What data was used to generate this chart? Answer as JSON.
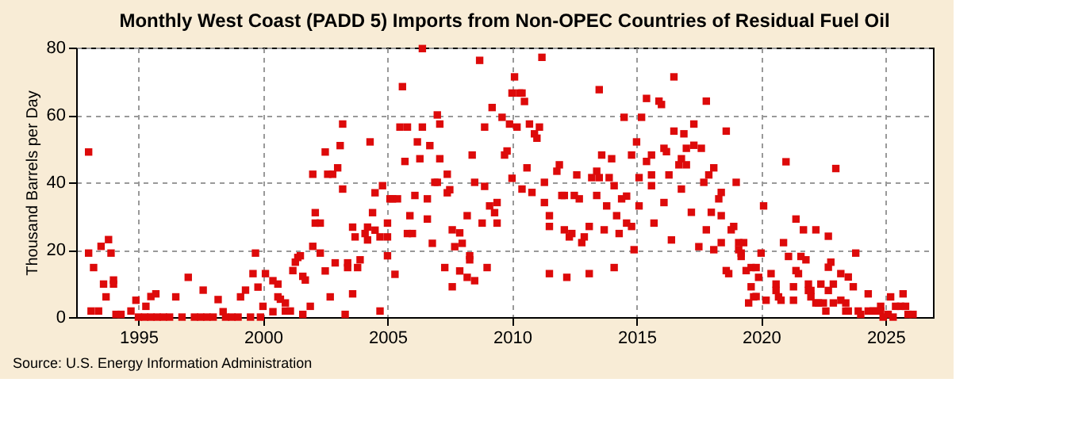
{
  "chart_data": {
    "type": "scatter",
    "title": "Monthly West Coast (PADD 5) Imports from Non-OPEC Countries of Residual Fuel Oil",
    "ylabel": "Thousand Barrels per Day",
    "annotations": [
      "Source: U.S. Energy Information Administration"
    ],
    "xlim": [
      1992.5,
      2026.9
    ],
    "xticks": [
      1995,
      2000,
      2005,
      2010,
      2015,
      2020,
      2025
    ],
    "ylim": [
      0,
      80
    ],
    "yticks": [
      0,
      20,
      40,
      60,
      80
    ],
    "grid": true,
    "marker": "square",
    "series": [
      {
        "color": "#dd0a0a",
        "x": [
          1993.0,
          1993.0,
          1993.2,
          1993.1,
          1993.4,
          1993.5,
          1993.8,
          1993.9,
          1993.6,
          1994.0,
          1994.0,
          1993.7,
          1994.1,
          1994.3,
          1994.7,
          1994.9,
          1995.3,
          1995.5,
          1995.7,
          1996.5,
          1997.0,
          1997.6,
          1998.2,
          1998.4,
          1999.1,
          1999.3,
          1999.6,
          1999.7,
          1999.8,
          2000.0,
          2000.1,
          2000.4,
          2000.4,
          2000.6,
          2000.6,
          2000.7,
          2000.9,
          2000.9,
          2001.1,
          2001.2,
          2001.3,
          2001.4,
          2001.5,
          2001.6,
          2001.7,
          2001.6,
          2001.9,
          2002.0,
          2002.0,
          2002.1,
          2002.1,
          1995.0,
          1995.25,
          1995.5,
          1995.75,
          1996.0,
          1996.25,
          1996.75,
          1997.25,
          1997.5,
          1997.75,
          1998.0,
          1998.5,
          1998.75,
          1999.0,
          1999.5,
          1999.9,
          2006.4,
          2008.7,
          2005.6,
          2010.1,
          2010.0,
          2010.3,
          2010.4,
          2010.5,
          2007.0,
          2007.1,
          2009.2,
          2009.6,
          2008.9,
          2009.9,
          2010.2,
          2005.5,
          2005.8,
          2006.4,
          2006.2,
          2006.7,
          2004.3,
          2003.2,
          2002.5,
          2003.1,
          2005.7,
          2006.3,
          2007.1,
          2008.4,
          2009.7,
          2009.8,
          2010.6,
          2003.0,
          2002.6,
          2002.8,
          2007.4,
          2006.9,
          2007.0,
          2010.0,
          2008.5,
          2008.9,
          2003.2,
          2004.8,
          2004.5,
          2005.1,
          2005.2,
          2005.4,
          2006.1,
          2006.6,
          2007.4,
          2007.5,
          2010.4,
          2010.8,
          2009.4,
          2009.1,
          2009.3,
          2004.4,
          2005.9,
          2008.2,
          2002.3,
          2006.6,
          2008.8,
          2009.4,
          2003.6,
          2004.2,
          2005.0,
          2004.5,
          2003.7,
          2004.1,
          2004.2,
          2004.7,
          2005.0,
          2005.8,
          2006.0,
          2007.6,
          2007.9,
          2006.8,
          2007.7,
          2008.0,
          2002.3,
          2005.0,
          2008.3,
          2008.3,
          2002.9,
          2003.4,
          2003.4,
          2003.8,
          2003.9,
          2002.5,
          2007.3,
          2007.9,
          2008.2,
          2008.5,
          2009.0,
          2005.3,
          2003.6,
          2002.7,
          2007.6,
          2004.7,
          2003.3,
          2011.2,
          2013.5,
          2016.5,
          2015.4,
          2015.9,
          2016.0,
          2017.8,
          2014.5,
          2015.2,
          2010.7,
          2010.9,
          2011.1,
          2011.0,
          2015.0,
          2016.5,
          2016.9,
          2017.3,
          2018.6,
          2016.1,
          2016.2,
          2016.8,
          2017.0,
          2017.3,
          2017.6,
          2013.6,
          2014.0,
          2015.6,
          2015.4,
          2011.9,
          2011.8,
          2016.7,
          2017.0,
          2018.1,
          2017.9,
          2013.4,
          2013.2,
          2013.5,
          2013.9,
          2012.6,
          2014.8,
          2015.1,
          2015.6,
          2016.3,
          2011.3,
          2014.1,
          2014.6,
          2014.4,
          2015.6,
          2016.8,
          2017.7,
          2019.0,
          2018.4,
          2018.3,
          2012.0,
          2012.1,
          2012.5,
          2012.7,
          2013.4,
          2011.3,
          2013.8,
          2015.1,
          2016.1,
          2014.2,
          2011.5,
          2017.2,
          2018.0,
          2018.4,
          2011.5,
          2012.1,
          2012.3,
          2012.4,
          2012.8,
          2012.9,
          2013.1,
          2013.7,
          2014.3,
          2014.6,
          2014.8,
          2015.7,
          2017.8,
          2018.8,
          2018.9,
          2016.4,
          2017.5,
          2018.1,
          2018.4,
          2019.1,
          2019.3,
          2019.1,
          2019.2,
          2019.2,
          2014.9,
          2011.5,
          2012.2,
          2013.1,
          2014.1,
          2018.6,
          2018.7,
          2019.4,
          2019.6,
          2019.8,
          2019.9,
          2019.6,
          2019.8,
          2019.5,
          2021.0,
          2023.0,
          2020.1,
          2021.4,
          2021.7,
          2022.2,
          2022.7,
          2020.9,
          2020.0,
          2023.8,
          2021.1,
          2021.6,
          2021.8,
          2020.4,
          2021.4,
          2021.5,
          2022.8,
          2022.7,
          2023.2,
          2023.5,
          2020.6,
          2020.6,
          2021.9,
          2022.4,
          2022.9,
          2021.3,
          2021.9,
          2022.0,
          2022.7,
          2023.7,
          2019.7,
          2020.2,
          2020.7,
          2020.8,
          2021.3,
          2022.0,
          2022.2,
          2022.3,
          2022.5,
          2022.9,
          2023.2,
          2023.4,
          2024.3,
          2022.6,
          2023.4,
          2023.5,
          2023.9,
          2024.0,
          2024.3,
          2024.5,
          2024.6,
          2024.8,
          2024.8,
          2025.1,
          2025.2,
          2025.4,
          2025.7,
          2025.6,
          2025.8,
          2025.9,
          2026.1,
          2024.9,
          2025.3
        ],
        "values": [
          49,
          19,
          14.7,
          1.8,
          1.8,
          21,
          23,
          19,
          9.8,
          11,
          9.8,
          6,
          0.8,
          0.8,
          1.8,
          5,
          3.2,
          6.1,
          6.9,
          6,
          11.8,
          8,
          5.2,
          1.6,
          6,
          8,
          12.9,
          19,
          8.9,
          3.2,
          12.9,
          10.8,
          1.6,
          9.8,
          6,
          5.3,
          4.2,
          1.8,
          1.8,
          13.8,
          16.3,
          17.7,
          18.2,
          12.1,
          11,
          0.8,
          3.2,
          21,
          42.4,
          31,
          27.9,
          0,
          0,
          0,
          0,
          0,
          0,
          0,
          0,
          0,
          0,
          0,
          0,
          0,
          0,
          0,
          0,
          79.7,
          76.2,
          68.4,
          71.3,
          66.5,
          66.5,
          66.5,
          64,
          60,
          57.3,
          62.2,
          59.3,
          56.4,
          57.3,
          56.4,
          56.4,
          56.4,
          56.4,
          52,
          50.9,
          52,
          57.3,
          49,
          50.9,
          46.2,
          47,
          47,
          48.1,
          48.1,
          49.3,
          44.3,
          44.3,
          42.4,
          42.4,
          42.4,
          40,
          40,
          41.2,
          40,
          38.8,
          38,
          39,
          36.9,
          35.1,
          35.1,
          35.1,
          36.1,
          35.1,
          36.9,
          37.8,
          38,
          37,
          34,
          33,
          31,
          31,
          30.1,
          30.1,
          27.9,
          29.1,
          27.9,
          27.9,
          26.7,
          26.7,
          27.9,
          25.8,
          23.8,
          24.8,
          22.9,
          23.8,
          23.8,
          24.8,
          24.8,
          25.9,
          25,
          21.9,
          20.9,
          21.9,
          19,
          18.2,
          18.2,
          17,
          16.1,
          16.1,
          14.7,
          14.7,
          17,
          13.7,
          14.7,
          13.7,
          11.8,
          10.8,
          14.7,
          12.7,
          6.9,
          6,
          9,
          1.8,
          0.8,
          77.1,
          67.5,
          71.3,
          64.9,
          64.1,
          63.1,
          64.1,
          59.3,
          59.3,
          57.3,
          54.4,
          56.4,
          53.1,
          52,
          55.2,
          54.4,
          57.3,
          55.2,
          50.1,
          49.1,
          47,
          50.1,
          51,
          50.1,
          48.1,
          47,
          48.1,
          46.2,
          45.2,
          43.3,
          45.2,
          45.2,
          44.3,
          42.2,
          43.3,
          41.4,
          41.4,
          41.4,
          42.2,
          48.1,
          41.4,
          42.2,
          42.2,
          40,
          39,
          35.9,
          35.1,
          39,
          38,
          40,
          40,
          37,
          35.1,
          36.1,
          36.1,
          36.1,
          35.1,
          36.1,
          34,
          33,
          33,
          34,
          30.1,
          30.1,
          31.1,
          31.1,
          30.1,
          26.9,
          25.9,
          23.8,
          24.8,
          22.1,
          23.8,
          26.9,
          25.9,
          24.8,
          27.9,
          26.9,
          27.9,
          25.9,
          25.9,
          26.9,
          22.9,
          20.9,
          20,
          22.1,
          22.1,
          22.1,
          20,
          19,
          18,
          20,
          12.9,
          11.8,
          12.9,
          14.7,
          13.8,
          12.9,
          13.8,
          14.7,
          14.7,
          11.8,
          9,
          6.1,
          4.2,
          46.1,
          44.1,
          33,
          29.1,
          25.9,
          25.9,
          24,
          22.1,
          19,
          19,
          18,
          18,
          17,
          12.9,
          13.8,
          12.9,
          16.3,
          14.8,
          12.9,
          11.9,
          9.8,
          7.9,
          9.8,
          9.8,
          9.8,
          9,
          7.9,
          7.9,
          7.9,
          9,
          6,
          5,
          6,
          5,
          5,
          6,
          4.2,
          4.2,
          4.2,
          4.2,
          5,
          4.2,
          6.9,
          1.8,
          1.8,
          1.8,
          1.8,
          0.8,
          1.8,
          1.8,
          1.8,
          3.2,
          1.8,
          0.8,
          6,
          3.2,
          6.9,
          3.2,
          3.2,
          0.8,
          0.8,
          0,
          0
        ]
      }
    ]
  }
}
